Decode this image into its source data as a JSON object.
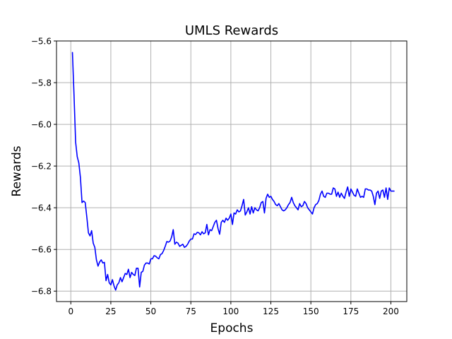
{
  "chart_data": {
    "type": "line",
    "title": "UMLS Rewards",
    "xlabel": "Epochs",
    "ylabel": "Rewards",
    "xlim": [
      -8.95,
      209.95
    ],
    "ylim": [
      -6.85,
      -5.6
    ],
    "xticks": [
      0,
      25,
      50,
      75,
      100,
      125,
      150,
      175,
      200
    ],
    "yticks": [
      -6.8,
      -6.6,
      -6.4,
      -6.2,
      -6.0,
      -5.8,
      -5.6
    ],
    "xtick_labels": [
      "0",
      "25",
      "50",
      "75",
      "100",
      "125",
      "150",
      "175",
      "200"
    ],
    "ytick_labels": [
      "−6.8",
      "−6.6",
      "−6.4",
      "−6.2",
      "−6.0",
      "−5.8",
      "−5.6"
    ],
    "grid": true,
    "line_color": "#0000ff",
    "series": [
      {
        "values": [
          -5.655,
          -5.86,
          -6.085,
          -6.155,
          -6.185,
          -6.255,
          -6.375,
          -6.368,
          -6.375,
          -6.445,
          -6.52,
          -6.535,
          -6.51,
          -6.57,
          -6.59,
          -6.65,
          -6.68,
          -6.66,
          -6.65,
          -6.665,
          -6.662,
          -6.75,
          -6.72,
          -6.76,
          -6.77,
          -6.745,
          -6.775,
          -6.795,
          -6.77,
          -6.76,
          -6.735,
          -6.755,
          -6.735,
          -6.715,
          -6.72,
          -6.695,
          -6.735,
          -6.71,
          -6.72,
          -6.725,
          -6.69,
          -6.69,
          -6.78,
          -6.71,
          -6.705,
          -6.675,
          -6.665,
          -6.665,
          -6.67,
          -6.645,
          -6.645,
          -6.63,
          -6.632,
          -6.64,
          -6.645,
          -6.625,
          -6.62,
          -6.605,
          -6.585,
          -6.562,
          -6.565,
          -6.56,
          -6.54,
          -6.505,
          -6.575,
          -6.565,
          -6.57,
          -6.585,
          -6.58,
          -6.575,
          -6.59,
          -6.585,
          -6.575,
          -6.56,
          -6.55,
          -6.55,
          -6.525,
          -6.528,
          -6.518,
          -6.52,
          -6.53,
          -6.515,
          -6.525,
          -6.52,
          -6.48,
          -6.53,
          -6.505,
          -6.51,
          -6.49,
          -6.47,
          -6.46,
          -6.5,
          -6.527,
          -6.47,
          -6.46,
          -6.47,
          -6.45,
          -6.46,
          -6.45,
          -6.43,
          -6.48,
          -6.425,
          -6.43,
          -6.41,
          -6.42,
          -6.415,
          -6.39,
          -6.36,
          -6.435,
          -6.42,
          -6.4,
          -6.43,
          -6.395,
          -6.425,
          -6.4,
          -6.41,
          -6.415,
          -6.4,
          -6.375,
          -6.37,
          -6.425,
          -6.355,
          -6.335,
          -6.35,
          -6.345,
          -6.36,
          -6.37,
          -6.385,
          -6.39,
          -6.38,
          -6.395,
          -6.41,
          -6.415,
          -6.41,
          -6.4,
          -6.385,
          -6.375,
          -6.35,
          -6.375,
          -6.39,
          -6.4,
          -6.41,
          -6.38,
          -6.395,
          -6.39,
          -6.37,
          -6.38,
          -6.4,
          -6.41,
          -6.42,
          -6.43,
          -6.4,
          -6.385,
          -6.38,
          -6.365,
          -6.335,
          -6.32,
          -6.345,
          -6.35,
          -6.33,
          -6.33,
          -6.335,
          -6.335,
          -6.305,
          -6.31,
          -6.345,
          -6.325,
          -6.35,
          -6.33,
          -6.345,
          -6.355,
          -6.325,
          -6.3,
          -6.345,
          -6.31,
          -6.325,
          -6.34,
          -6.345,
          -6.31,
          -6.33,
          -6.35,
          -6.345,
          -6.35,
          -6.31,
          -6.31,
          -6.315,
          -6.315,
          -6.32,
          -6.345,
          -6.385,
          -6.33,
          -6.32,
          -6.355,
          -6.32,
          -6.315,
          -6.35,
          -6.305,
          -6.36,
          -6.305,
          -6.32,
          -6.32,
          -6.32
        ]
      }
    ]
  }
}
